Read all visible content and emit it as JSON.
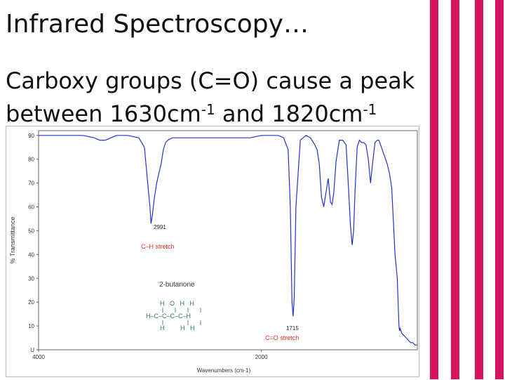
{
  "slide": {
    "title": "Infrared Spectroscopy…",
    "body_line1": "Carboxy groups (C=O) cause a peak",
    "body_line2_a": "between 1630cm",
    "body_sup_a": "-1",
    "body_line2_b": " and 1820cm",
    "body_sup_b": "-1",
    "accent_color": "#d6135f"
  },
  "chart_data": {
    "type": "line",
    "xlabel": "Wavenumbers (cm-1)",
    "ylabel": "% Transmittance",
    "xlim": [
      4000,
      600
    ],
    "ylim": [
      0,
      92
    ],
    "x_ticks": [
      "4000",
      "2000"
    ],
    "y_ticks": [
      "90",
      "80",
      "70",
      "60",
      "50",
      "40",
      "30",
      "20",
      "10",
      "U"
    ],
    "series_color": "#2233cc",
    "series": [
      {
        "x": [
          4000,
          3900,
          3800,
          3700,
          3600,
          3500,
          3450,
          3400,
          3350,
          3300,
          3200,
          3100,
          3050,
          3020,
          3000,
          2991,
          2980,
          2960,
          2940,
          2930,
          2900,
          2880,
          2860,
          2840,
          2800,
          2700,
          2600,
          2500,
          2400,
          2300,
          2200,
          2100,
          2000,
          1900,
          1850,
          1800,
          1760,
          1740,
          1725,
          1715,
          1705,
          1690,
          1650,
          1600,
          1560,
          1520,
          1500,
          1480,
          1460,
          1440,
          1420,
          1400,
          1380,
          1365,
          1350,
          1330,
          1300,
          1270,
          1240,
          1220,
          1200,
          1185,
          1172,
          1160,
          1140,
          1120,
          1100,
          1080,
          1060,
          1040,
          1020,
          1000,
          980,
          960,
          945,
          930,
          900,
          870,
          850,
          830,
          800,
          780,
          765,
          760,
          755,
          740,
          720,
          700,
          680,
          660,
          640,
          620,
          600
        ],
        "y": [
          90,
          90,
          90,
          90,
          90,
          89,
          88,
          88,
          89,
          90,
          90,
          89,
          85,
          70,
          60,
          53,
          56,
          64,
          70,
          72,
          78,
          84,
          87,
          88,
          89,
          89,
          89,
          89,
          89,
          89,
          89,
          89,
          90,
          90,
          90,
          89,
          84,
          60,
          20,
          14,
          22,
          60,
          88,
          90,
          89,
          86,
          84,
          78,
          64,
          60,
          66,
          72,
          62,
          61,
          66,
          79,
          88,
          88,
          86,
          70,
          52,
          44,
          50,
          66,
          85,
          88,
          87,
          87,
          86,
          80,
          70,
          79,
          87,
          88,
          88,
          86,
          82,
          78,
          74,
          68,
          40,
          30,
          10,
          8,
          9,
          7,
          6,
          5,
          4,
          3,
          3,
          2,
          2
        ]
      }
    ],
    "annotations": {
      "peak1_wavenumber": "2991",
      "peak1_label": "C–H stretch",
      "peak2_wavenumber": "1715",
      "peak2_label": "C=O stretch",
      "compound_name": "2-butanone",
      "structure_row1": "H   O   H   H",
      "structure_row3": "H–C–C–C–C–H",
      "structure_row5": "H         H   H",
      "label_color": "#e03020",
      "structure_color": "#2a7a4a"
    }
  }
}
